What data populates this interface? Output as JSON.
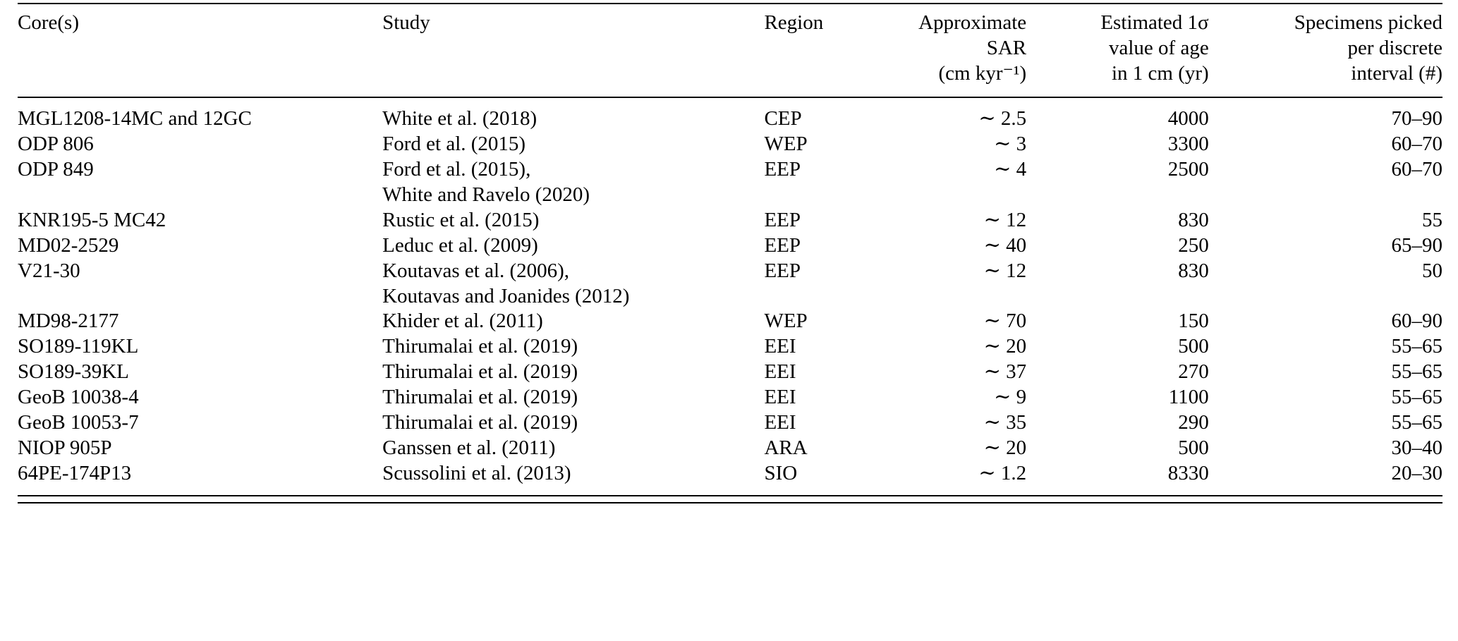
{
  "table": {
    "columns": [
      {
        "key": "core",
        "label": "Core(s)"
      },
      {
        "key": "study",
        "label": "Study"
      },
      {
        "key": "region",
        "label": "Region"
      },
      {
        "key": "sar",
        "label": "Approximate\nSAR\n(cm kyr⁻¹)"
      },
      {
        "key": "sigma",
        "label": "Estimated 1σ\nvalue of age\nin 1 cm (yr)"
      },
      {
        "key": "specimens",
        "label": "Specimens picked\nper discrete\ninterval (#)"
      }
    ],
    "rows": [
      {
        "core": "MGL1208-14MC and 12GC",
        "study": "White et al. (2018)",
        "region": "CEP",
        "sar": "∼ 2.5",
        "sigma": "4000",
        "specimens": "70–90"
      },
      {
        "core": "ODP 806",
        "study": "Ford et al. (2015)",
        "region": "WEP",
        "sar": "∼ 3",
        "sigma": "3300",
        "specimens": "60–70"
      },
      {
        "core": "ODP 849",
        "study": "Ford et al. (2015),\nWhite and Ravelo (2020)",
        "region": "EEP",
        "sar": "∼ 4",
        "sigma": "2500",
        "specimens": "60–70"
      },
      {
        "core": "KNR195-5 MC42",
        "study": "Rustic et al. (2015)",
        "region": "EEP",
        "sar": "∼ 12",
        "sigma": "830",
        "specimens": "55"
      },
      {
        "core": "MD02-2529",
        "study": "Leduc et al. (2009)",
        "region": "EEP",
        "sar": "∼ 40",
        "sigma": "250",
        "specimens": "65–90"
      },
      {
        "core": "V21-30",
        "study": "Koutavas et al. (2006),\nKoutavas and Joanides (2012)",
        "region": "EEP",
        "sar": "∼ 12",
        "sigma": "830",
        "specimens": "50"
      },
      {
        "core": "MD98-2177",
        "study": "Khider et al. (2011)",
        "region": "WEP",
        "sar": "∼ 70",
        "sigma": "150",
        "specimens": "60–90"
      },
      {
        "core": "SO189-119KL",
        "study": "Thirumalai et al. (2019)",
        "region": "EEI",
        "sar": "∼ 20",
        "sigma": "500",
        "specimens": "55–65"
      },
      {
        "core": "SO189-39KL",
        "study": "Thirumalai et al. (2019)",
        "region": "EEI",
        "sar": "∼ 37",
        "sigma": "270",
        "specimens": "55–65"
      },
      {
        "core": "GeoB 10038-4",
        "study": "Thirumalai et al. (2019)",
        "region": "EEI",
        "sar": "∼ 9",
        "sigma": "1100",
        "specimens": "55–65"
      },
      {
        "core": "GeoB 10053-7",
        "study": "Thirumalai et al. (2019)",
        "region": "EEI",
        "sar": "∼ 35",
        "sigma": "290",
        "specimens": "55–65"
      },
      {
        "core": "NIOP 905P",
        "study": "Ganssen et al. (2011)",
        "region": "ARA",
        "sar": "∼ 20",
        "sigma": "500",
        "specimens": "30–40"
      },
      {
        "core": "64PE-174P13",
        "study": "Scussolini et al. (2013)",
        "region": "SIO",
        "sar": "∼ 1.2",
        "sigma": "8330",
        "specimens": "20–30"
      }
    ]
  }
}
